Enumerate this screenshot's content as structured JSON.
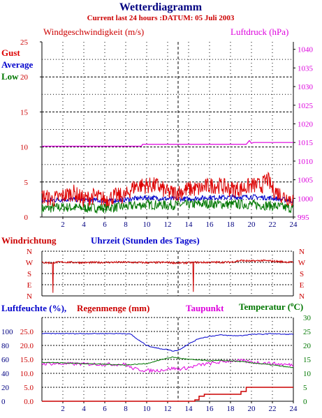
{
  "title": "Wetterdiagramm",
  "subtitle": "Current last 24 hours :DATUM: 05 Juli 2003",
  "colors": {
    "gust": "#dd0000",
    "average": "#0000cc",
    "low": "#007700",
    "pressure": "#dd00dd",
    "wind_direction": "#cc0000",
    "humidity": "#0000cc",
    "rain": "#cc0000",
    "dewpoint": "#dd00dd",
    "temperature": "#007700",
    "axis_red": "#cc0000"
  },
  "chart_data": [
    {
      "type": "line",
      "title": "Windgeschwindigkeit (m/s)",
      "ylabel": "Windgeschwindigkeit (m/s)",
      "y2label": "Luftdruck (hPa)",
      "xlabel": "Uhrzeit (Stunden des Tages)",
      "xlim": [
        0,
        24
      ],
      "ylim": [
        0,
        25
      ],
      "y2lim": [
        995,
        1042
      ],
      "x_ticks": [
        "2",
        "4",
        "6",
        "8",
        "10",
        "12",
        "14",
        "16",
        "18",
        "20",
        "22",
        "24"
      ],
      "y_ticks": [
        "0",
        "5",
        "10",
        "15",
        "20",
        "25"
      ],
      "y2_ticks": [
        "995",
        "1000",
        "1005",
        "1010",
        "1015",
        "1020",
        "1025",
        "1030",
        "1035",
        "1040"
      ],
      "grid": true,
      "legend": "left",
      "series": [
        {
          "name": "Gust",
          "axis": "left",
          "x": [
            0,
            1,
            2,
            3,
            4,
            5,
            6,
            7,
            8,
            8.5,
            9,
            10,
            11,
            12,
            13,
            14,
            15,
            16,
            17,
            18,
            19,
            20,
            21,
            21.5,
            22,
            23,
            24
          ],
          "y": [
            3,
            2.5,
            3,
            3.5,
            2.5,
            3,
            2.5,
            3,
            3,
            4,
            4.5,
            4.5,
            4.5,
            3.5,
            3.5,
            4,
            4,
            4.5,
            4.5,
            4,
            4,
            4.5,
            4.5,
            5.5,
            4,
            3,
            2.5
          ]
        },
        {
          "name": "Average",
          "axis": "left",
          "x": [
            0,
            2,
            4,
            6,
            8,
            10,
            12,
            14,
            16,
            18,
            20,
            22,
            24
          ],
          "y": [
            2.3,
            2.5,
            2.5,
            2.3,
            2.5,
            2.8,
            2.6,
            2.6,
            2.8,
            2.8,
            2.9,
            2.7,
            2.3
          ]
        },
        {
          "name": "Low",
          "axis": "left",
          "x": [
            0,
            2,
            4,
            6,
            8,
            10,
            12,
            14,
            16,
            18,
            20,
            22,
            24
          ],
          "y": [
            1.2,
            1.4,
            1.3,
            1.3,
            1.5,
            1.8,
            1.7,
            1.8,
            1.9,
            1.8,
            1.8,
            1.6,
            1.2
          ]
        },
        {
          "name": "Luftdruck",
          "axis": "right",
          "x": [
            0,
            9.5,
            9.6,
            19.5,
            19.8,
            20,
            20.2,
            24
          ],
          "y": [
            1014,
            1014,
            1014.5,
            1014.5,
            1015.5,
            1014.8,
            1015,
            1015
          ]
        }
      ]
    },
    {
      "type": "line",
      "title": "Windrichtung",
      "xlim": [
        0,
        24
      ],
      "y_ticks": [
        "N",
        "W",
        "S",
        "E",
        "N"
      ],
      "grid": true,
      "series": [
        {
          "name": "Windrichtung",
          "x": [
            0,
            1,
            1.05,
            1.1,
            1.2,
            2,
            4,
            6,
            8,
            10,
            12,
            13,
            14,
            14.4,
            14.45,
            14.5,
            14.6,
            16,
            18,
            19,
            20,
            21,
            22,
            23,
            24
          ],
          "y": [
            270,
            265,
            20,
            270,
            270,
            272,
            268,
            270,
            271,
            268,
            270,
            265,
            268,
            268,
            40,
            268,
            270,
            270,
            272,
            285,
            280,
            285,
            280,
            275,
            270
          ]
        }
      ]
    },
    {
      "type": "line",
      "xlim": [
        0,
        24
      ],
      "ylim": [
        0,
        30
      ],
      "y_ticks_left_a": [
        "0",
        "20",
        "40",
        "60",
        "80",
        "100"
      ],
      "y_ticks_left_b": [
        "0.0",
        "5.0",
        "10.0",
        "15.0",
        "20.0",
        "25.0"
      ],
      "y_ticks_right": [
        "0",
        "5",
        "10",
        "15",
        "20",
        "25",
        "30"
      ],
      "y_tick_values": [
        0,
        5,
        10,
        15,
        20,
        25
      ],
      "y_right_tick_values": [
        0,
        5,
        10,
        15,
        20,
        25,
        30
      ],
      "labels": {
        "humidity": "Luftfeuchte (%),",
        "rain": "Regenmenge (mm)",
        "dewpoint": "Taupunkt",
        "temperature": "Temperatur (",
        "temperature_unit": "C)",
        "degree": "o"
      },
      "x_ticks": [
        "2",
        "4",
        "6",
        "8",
        "10",
        "12",
        "14",
        "16",
        "18",
        "20",
        "22",
        "24"
      ],
      "grid": true,
      "series": [
        {
          "name": "Luftfeuchte (%)",
          "scale": "pct",
          "x": [
            0,
            6,
            8,
            8.5,
            9,
            10,
            11,
            12,
            12.5,
            13,
            14,
            15,
            16,
            17,
            18,
            19,
            20,
            21,
            22,
            23,
            24
          ],
          "y": [
            97,
            97,
            97,
            96,
            90,
            80,
            76,
            74,
            72,
            73,
            82,
            90,
            93,
            95,
            94,
            94,
            96,
            96,
            97,
            96,
            96
          ]
        },
        {
          "name": "Regenmenge (mm)",
          "scale": "mm",
          "x": [
            0,
            14.5,
            14.6,
            15,
            15.5,
            16,
            18,
            19,
            19.5,
            20,
            22,
            24
          ],
          "y": [
            0,
            0,
            0.5,
            1.8,
            2.5,
            2.5,
            2.5,
            3.5,
            5,
            5,
            5,
            5
          ]
        },
        {
          "name": "Taupunkt",
          "scale": "deg",
          "x": [
            0,
            8,
            8.5,
            9,
            10,
            11,
            12,
            12.5,
            13,
            14,
            15,
            16,
            17,
            18,
            19,
            20,
            21,
            22,
            23,
            24
          ],
          "y": [
            13.5,
            13.2,
            12,
            11.5,
            11,
            11,
            11.5,
            11.8,
            11.5,
            12,
            13,
            13.5,
            14,
            14.5,
            14.5,
            14,
            13.8,
            13.5,
            13.2,
            13
          ]
        },
        {
          "name": "Temperatur",
          "scale": "deg",
          "x": [
            0,
            4,
            8,
            10,
            12,
            12.5,
            13,
            14,
            16,
            17,
            18,
            19,
            20,
            22,
            24
          ],
          "y": [
            14,
            13.5,
            13,
            13.5,
            15.5,
            15.8,
            15.5,
            15,
            14.5,
            14.6,
            14.5,
            14.2,
            13.8,
            13,
            12
          ]
        }
      ]
    }
  ]
}
